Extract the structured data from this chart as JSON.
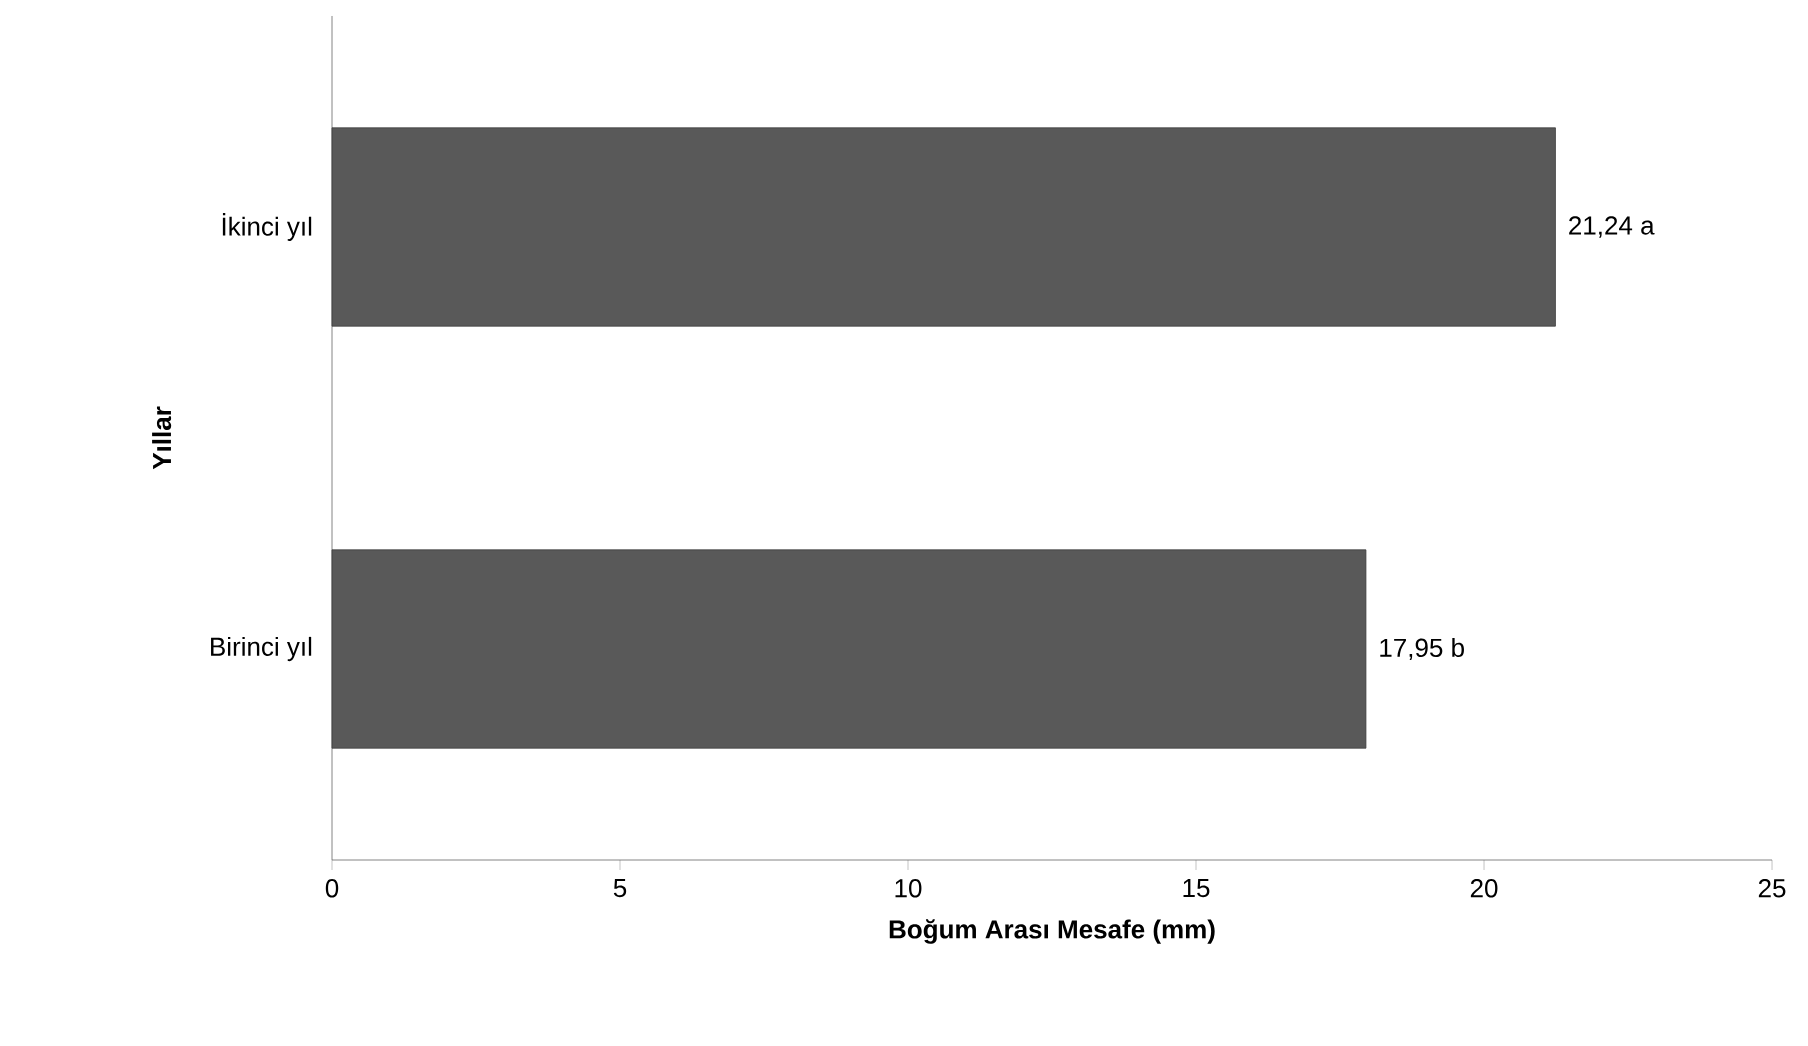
{
  "chart_data": {
    "type": "bar",
    "orientation": "horizontal",
    "xlabel": "Boğum Arası Mesafe (mm)",
    "ylabel": "Yıllar",
    "categories": [
      "İkinci yıl",
      "Birinci yıl"
    ],
    "values": [
      21.24,
      17.95
    ],
    "value_labels": [
      "21,24 a",
      "17,95 b"
    ],
    "color": "#595959",
    "xlim": [
      0,
      25
    ],
    "xticks": [
      0,
      5,
      10,
      15,
      20,
      25
    ]
  }
}
